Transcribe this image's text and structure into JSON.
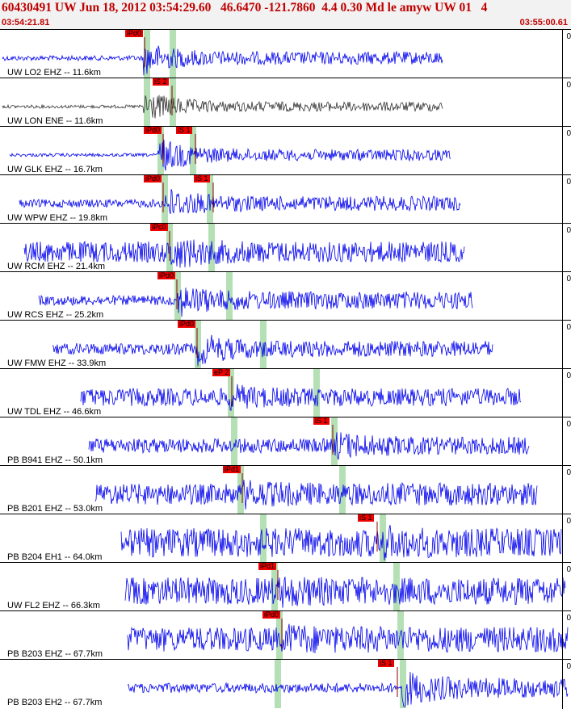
{
  "header": {
    "title": "60430491 UW Jun 18, 2012 03:54:29.60   46.6470 -121.7860  4.4 0.30 Md le amyw UW 01   4",
    "time_start": "03:54:21.81",
    "time_end": "03:55:00.61"
  },
  "colors": {
    "trace": "#0000ee",
    "trace_horizontal": "#333333",
    "pick": "#ee0000",
    "window": "#b5e0b5",
    "header_text": "#c00000"
  },
  "channels": [
    {
      "label": "UW LO2 EHZ -- 11.6km",
      "corner": "0",
      "picks": [
        "iPd0"
      ]
    },
    {
      "label": "UW LON ENE -- 11.6km",
      "corner": "0",
      "picks": [
        "iS 2"
      ]
    },
    {
      "label": "UW GLK EHZ -- 16.7km",
      "corner": "0",
      "picks": [
        "iPd0",
        "iS 1"
      ]
    },
    {
      "label": "UW WPW EHZ -- 19.8km",
      "corner": "0",
      "picks": [
        "iPd0",
        "iS 1"
      ]
    },
    {
      "label": "UW RCM EHZ -- 21.4km",
      "corner": "0",
      "picks": [
        "iPc0"
      ]
    },
    {
      "label": "UW RCS EHZ -- 25.2km",
      "corner": "0",
      "picks": [
        "iPd0"
      ]
    },
    {
      "label": "UW FMW EHZ -- 33.9km",
      "corner": "0",
      "picks": [
        "iPd0"
      ]
    },
    {
      "label": "UW TDL EHZ -- 46.6km",
      "corner": "0",
      "picks": [
        "eP 2"
      ]
    },
    {
      "label": "PB B941 EHZ -- 50.1km",
      "corner": "0",
      "picks": [
        "iS 1"
      ]
    },
    {
      "label": "PB B201 EHZ -- 53.0km",
      "corner": "0",
      "picks": [
        "iPd1"
      ]
    },
    {
      "label": "PB B204 EH1 -- 64.0km",
      "corner": "0",
      "picks": [
        "iS 1"
      ]
    },
    {
      "label": "UW FL2 EHZ -- 66.3km",
      "corner": "0",
      "picks": [
        "iPd1"
      ]
    },
    {
      "label": "PB B203 EHZ -- 67.7km",
      "corner": "0",
      "picks": [
        "iPd0"
      ]
    },
    {
      "label": "PB B203 EH2 -- 67.7km",
      "corner": "0",
      "picks": [
        "iS 1"
      ]
    }
  ]
}
